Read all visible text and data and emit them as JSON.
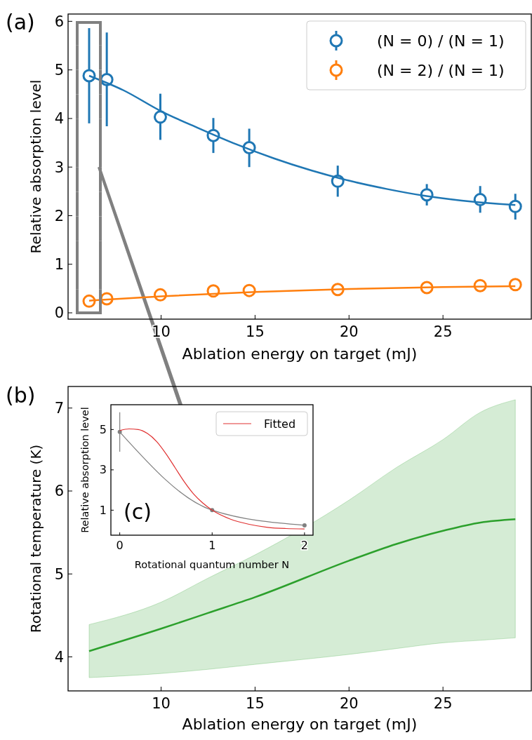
{
  "chart_data": [
    {
      "type": "scatter",
      "xlabel": "Ablation energy on target (mJ)",
      "ylabel": "Relative absorption level",
      "annotations": [
        "(a)"
      ],
      "xlim": [
        5.05,
        29.7
      ],
      "ylim": [
        -0.13,
        6.15
      ],
      "xticks": [
        10,
        15,
        20,
        25
      ],
      "yticks": [
        0,
        1,
        2,
        3,
        4,
        5,
        6
      ],
      "legend": "top right",
      "marker": "circle",
      "series": [
        {
          "name": "(N = 0) / (N = 1)",
          "type": "scatter",
          "color": "#1f77b4",
          "x": [
            6.17,
            7.11,
            9.96,
            12.78,
            14.69,
            19.4,
            24.14,
            26.98,
            28.85
          ],
          "values": [
            4.88,
            4.8,
            4.03,
            3.65,
            3.4,
            2.71,
            2.43,
            2.33,
            2.19
          ],
          "errors": [
            [
              3.9,
              5.86
            ],
            [
              3.84,
              5.77
            ],
            [
              3.56,
              4.51
            ],
            [
              3.29,
              4.01
            ],
            [
              3.0,
              3.79
            ],
            [
              2.39,
              3.03
            ],
            [
              2.21,
              2.65
            ],
            [
              2.06,
              2.61
            ],
            [
              1.92,
              2.45
            ]
          ]
        },
        {
          "name": "(N = 2) / (N = 1)",
          "type": "scatter",
          "color": "#ff7f0e",
          "x": [
            6.17,
            7.11,
            9.96,
            12.78,
            14.69,
            19.4,
            24.14,
            26.98,
            28.85
          ],
          "values": [
            0.24,
            0.29,
            0.37,
            0.45,
            0.46,
            0.48,
            0.52,
            0.56,
            0.58
          ]
        },
        {
          "type": "line",
          "color": "#1f77b4",
          "marker": "none",
          "x": [
            6.17,
            8,
            10,
            12,
            14,
            16,
            18,
            20,
            22,
            24,
            26,
            28,
            28.85
          ],
          "values": [
            4.88,
            4.58,
            4.15,
            3.8,
            3.47,
            3.18,
            2.93,
            2.72,
            2.55,
            2.41,
            2.31,
            2.24,
            2.22
          ]
        },
        {
          "type": "line",
          "color": "#ff7f0e",
          "marker": "none",
          "x": [
            6.17,
            10,
            15,
            20,
            25,
            28.85
          ],
          "values": [
            0.25,
            0.34,
            0.43,
            0.49,
            0.53,
            0.55
          ]
        }
      ]
    },
    {
      "type": "line",
      "xlabel": "Ablation energy on target (mJ)",
      "ylabel": "Rotational temperature (K)",
      "annotations": [
        "(b)"
      ],
      "xlim": [
        5.05,
        29.7
      ],
      "ylim": [
        3.59,
        7.26
      ],
      "xticks": [
        10,
        15,
        20,
        25
      ],
      "yticks": [
        4,
        5,
        6,
        7
      ],
      "series": [
        {
          "color": "#2ca02c",
          "x": [
            6.17,
            10,
            12.5,
            15,
            20,
            22.5,
            25,
            27,
            28.85
          ],
          "values": [
            4.07,
            4.34,
            4.53,
            4.72,
            5.16,
            5.36,
            5.52,
            5.62,
            5.66
          ],
          "lower": [
            3.75,
            3.8,
            3.85,
            3.91,
            4.03,
            4.1,
            4.17,
            4.2,
            4.23
          ],
          "upper": [
            4.39,
            4.66,
            4.95,
            5.23,
            5.89,
            6.28,
            6.62,
            6.95,
            7.1
          ]
        }
      ]
    },
    {
      "type": "line",
      "xlabel": "Rotational quantum number N",
      "ylabel": "Relative absorption level",
      "annotations": [
        "(c)"
      ],
      "xlim": [
        -0.096,
        2.092
      ],
      "ylim": [
        -0.24,
        6.23
      ],
      "xticks": [
        0,
        1,
        2
      ],
      "yticks": [
        1,
        3,
        5
      ],
      "legend": "top right",
      "series": [
        {
          "color": "#808080",
          "marker": "circle",
          "x": [
            0,
            1,
            2
          ],
          "values": [
            4.88,
            1,
            0.25
          ],
          "errors": [
            [
              3.9,
              5.86
            ],
            null,
            null
          ]
        },
        {
          "name": "Fitted",
          "color": "#e03030",
          "marker": "none",
          "x": [
            0,
            0.1,
            0.2,
            0.3,
            0.4,
            0.5,
            0.6,
            0.7,
            0.8,
            0.9,
            1,
            1.2,
            1.4,
            1.6,
            1.8,
            2
          ],
          "values": [
            4.95,
            5.03,
            5.0,
            4.8,
            4.4,
            3.8,
            3.1,
            2.4,
            1.8,
            1.35,
            1.0,
            0.55,
            0.3,
            0.15,
            0.09,
            0.07
          ]
        }
      ]
    }
  ]
}
